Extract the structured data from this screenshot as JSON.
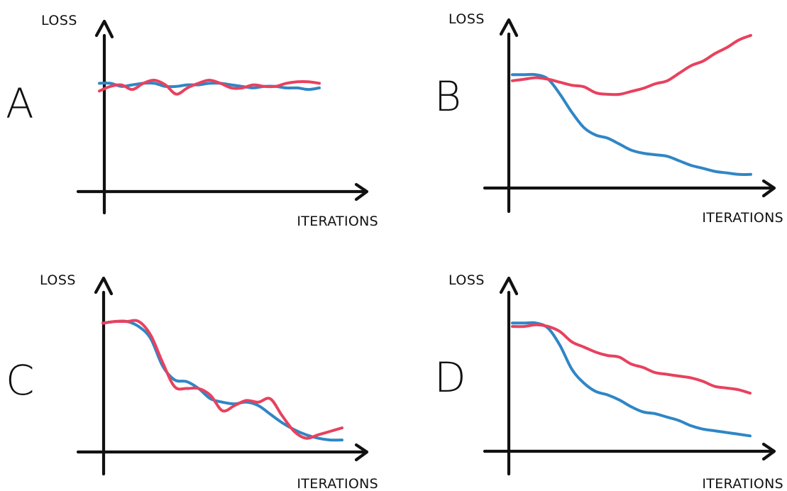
{
  "colors": {
    "blue": "#2f86c5",
    "red": "#e8415e",
    "axis": "#111111"
  },
  "chart_data": [
    {
      "type": "line",
      "panel_label": "A",
      "xlabel": "ITERATIONS",
      "ylabel": "LOSS",
      "xlim": [
        0,
        100
      ],
      "ylim": [
        0,
        100
      ],
      "grid": false,
      "series": [
        {
          "color": "blue",
          "x": [
            0,
            5,
            10,
            15,
            20,
            25,
            30,
            35,
            40,
            45,
            50,
            55,
            60,
            65,
            70,
            75,
            80,
            85,
            90,
            95,
            100
          ],
          "y": [
            70,
            70,
            68,
            69,
            70,
            70,
            68,
            68,
            69,
            69,
            70,
            70,
            69,
            68,
            67,
            68,
            68,
            67,
            67,
            66,
            67
          ]
        },
        {
          "color": "red",
          "x": [
            0,
            5,
            10,
            15,
            20,
            25,
            30,
            35,
            40,
            45,
            50,
            55,
            60,
            65,
            70,
            75,
            80,
            85,
            90,
            95,
            100
          ],
          "y": [
            65,
            68,
            69,
            66,
            70,
            72,
            69,
            63,
            67,
            70,
            72,
            70,
            67,
            67,
            69,
            68,
            68,
            70,
            71,
            71,
            70
          ]
        }
      ]
    },
    {
      "type": "line",
      "panel_label": "B",
      "xlabel": "ITERATIONS",
      "ylabel": "LOSS",
      "xlim": [
        0,
        100
      ],
      "ylim": [
        0,
        100
      ],
      "grid": false,
      "series": [
        {
          "color": "blue",
          "x": [
            0,
            5,
            10,
            15,
            20,
            25,
            30,
            35,
            40,
            45,
            50,
            55,
            60,
            65,
            70,
            75,
            80,
            85,
            90,
            95,
            100
          ],
          "y": [
            75,
            75,
            75,
            72,
            62,
            50,
            40,
            35,
            33,
            29,
            25,
            23,
            22,
            21,
            18,
            15,
            13,
            11,
            10,
            9,
            9
          ]
        },
        {
          "color": "red",
          "x": [
            0,
            5,
            10,
            15,
            20,
            25,
            30,
            35,
            40,
            45,
            50,
            55,
            60,
            65,
            70,
            75,
            80,
            85,
            90,
            95,
            100
          ],
          "y": [
            71,
            72,
            73,
            72,
            70,
            68,
            67,
            63,
            62,
            62,
            64,
            66,
            69,
            71,
            76,
            81,
            84,
            89,
            93,
            98,
            101
          ]
        }
      ]
    },
    {
      "type": "line",
      "panel_label": "C",
      "xlabel": "ITERATIONS",
      "ylabel": "LOSS",
      "xlim": [
        0,
        100
      ],
      "ylim": [
        0,
        100
      ],
      "grid": false,
      "series": [
        {
          "color": "blue",
          "x": [
            0,
            5,
            10,
            15,
            20,
            25,
            30,
            35,
            40,
            45,
            50,
            55,
            60,
            65,
            70,
            75,
            80,
            85,
            90,
            95,
            100
          ],
          "y": [
            75,
            76,
            76,
            73,
            66,
            50,
            42,
            41,
            37,
            31,
            29,
            28,
            29,
            27,
            22,
            17,
            13,
            10,
            8,
            7,
            7
          ]
        },
        {
          "color": "red",
          "x": [
            0,
            5,
            10,
            15,
            20,
            25,
            30,
            35,
            40,
            45,
            50,
            55,
            60,
            65,
            70,
            75,
            80,
            85,
            90,
            95,
            100
          ],
          "y": [
            75,
            76,
            76,
            76,
            68,
            52,
            38,
            37,
            37,
            33,
            24,
            27,
            30,
            29,
            31,
            21,
            12,
            8,
            10,
            12,
            14
          ]
        }
      ]
    },
    {
      "type": "line",
      "panel_label": "D",
      "xlabel": "ITERATIONS",
      "ylabel": "LOSS",
      "xlim": [
        0,
        100
      ],
      "ylim": [
        0,
        100
      ],
      "grid": false,
      "series": [
        {
          "color": "blue",
          "x": [
            0,
            5,
            10,
            15,
            20,
            25,
            30,
            35,
            40,
            45,
            50,
            55,
            60,
            65,
            70,
            75,
            80,
            85,
            90,
            95,
            100
          ],
          "y": [
            75,
            75,
            75,
            72,
            62,
            48,
            40,
            35,
            33,
            30,
            26,
            23,
            22,
            20,
            18,
            15,
            13,
            12,
            11,
            10,
            9
          ]
        },
        {
          "color": "red",
          "x": [
            0,
            5,
            10,
            15,
            20,
            25,
            30,
            35,
            40,
            45,
            50,
            55,
            60,
            65,
            70,
            75,
            80,
            85,
            90,
            95,
            100
          ],
          "y": [
            73,
            73,
            74,
            73,
            70,
            64,
            61,
            58,
            56,
            55,
            51,
            49,
            46,
            45,
            44,
            43,
            41,
            38,
            37,
            36,
            34
          ]
        }
      ]
    }
  ]
}
